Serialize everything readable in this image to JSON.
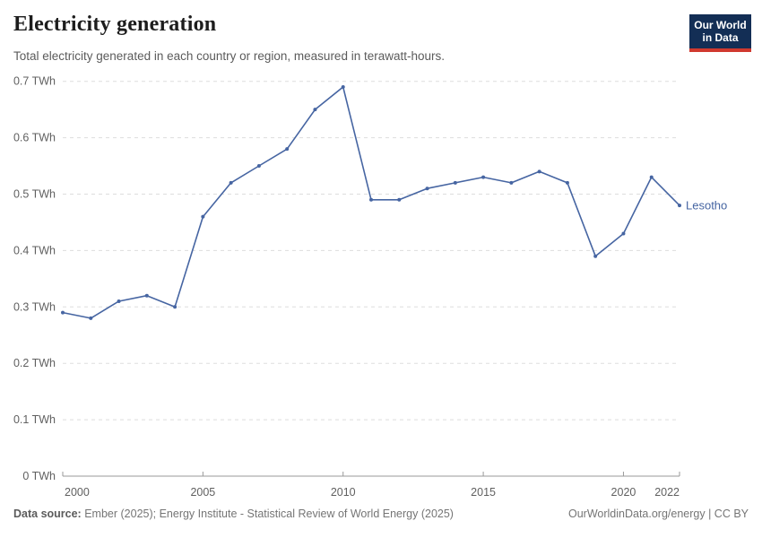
{
  "header": {
    "title": "Electricity generation",
    "subtitle": "Total electricity generated in each country or region, measured in terawatt-hours."
  },
  "logo": {
    "line1": "Our World",
    "line2": "in Data",
    "bg_color": "#132e55",
    "accent_color": "#d0392f"
  },
  "footer": {
    "source_label": "Data source:",
    "source_text": " Ember (2025); Energy Institute - Statistical Review of World Energy (2025)",
    "credit": "OurWorldinData.org/energy | CC BY"
  },
  "chart_data": {
    "type": "line",
    "title": "Electricity generation",
    "subtitle": "Total electricity generated in each country or region, measured in terawatt-hours.",
    "x": [
      2000,
      2001,
      2002,
      2003,
      2004,
      2005,
      2006,
      2007,
      2008,
      2009,
      2010,
      2011,
      2012,
      2013,
      2014,
      2015,
      2016,
      2017,
      2018,
      2019,
      2020,
      2021,
      2022
    ],
    "series": [
      {
        "name": "Lesotho",
        "color": "#4665a2",
        "values": [
          0.29,
          0.28,
          0.31,
          0.32,
          0.3,
          0.46,
          0.52,
          0.55,
          0.58,
          0.65,
          0.69,
          0.49,
          0.49,
          0.51,
          0.52,
          0.53,
          0.52,
          0.54,
          0.52,
          0.39,
          0.43,
          0.53,
          0.48
        ]
      }
    ],
    "unit": "TWh",
    "xlim": [
      2000,
      2022
    ],
    "ylim": [
      0,
      0.7
    ],
    "x_ticks": [
      {
        "value": 2000,
        "label": "2000"
      },
      {
        "value": 2005,
        "label": "2005"
      },
      {
        "value": 2010,
        "label": "2010"
      },
      {
        "value": 2015,
        "label": "2015"
      },
      {
        "value": 2020,
        "label": "2020"
      },
      {
        "value": 2022,
        "label": "2022"
      }
    ],
    "y_ticks": [
      {
        "value": 0.0,
        "label": "0 TWh"
      },
      {
        "value": 0.1,
        "label": "0.1 TWh"
      },
      {
        "value": 0.2,
        "label": "0.2 TWh"
      },
      {
        "value": 0.3,
        "label": "0.3 TWh"
      },
      {
        "value": 0.4,
        "label": "0.4 TWh"
      },
      {
        "value": 0.5,
        "label": "0.5 TWh"
      },
      {
        "value": 0.6,
        "label": "0.6 TWh"
      },
      {
        "value": 0.7,
        "label": "0.7 TWh"
      },
      {
        "value": 0.7,
        "label": ""
      }
    ],
    "grid": "horizontal-dashed",
    "legend": "series-end-label",
    "colors": {
      "line": "#4665a2",
      "gridline": "#dddddd",
      "axis": "#999999",
      "tick_label": "#606060"
    }
  }
}
